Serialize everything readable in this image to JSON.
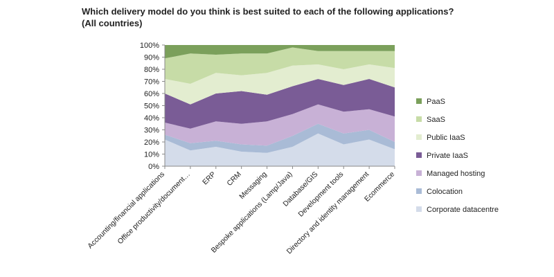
{
  "chart_data": {
    "type": "area",
    "stacked": true,
    "title": "Which delivery model do you think is best suited to each of the following applications? (All countries)",
    "categories": [
      "Accounting/financial applications",
      "Office productivity/document…",
      "ERP",
      "CRM",
      "Messaging",
      "Bespoke applications (Lamp/Java)",
      "Database/GIS",
      "Development tools",
      "Directory and identity management",
      "Ecommerce"
    ],
    "y_ticks": [
      "0%",
      "10%",
      "20%",
      "30%",
      "40%",
      "50%",
      "60%",
      "70%",
      "80%",
      "90%",
      "100%"
    ],
    "ylim": [
      0,
      100
    ],
    "legend_position": "right",
    "series": [
      {
        "name": "Corporate datacentre",
        "color": "#d4dcea",
        "values": [
          22,
          13,
          16,
          12,
          11,
          16,
          27,
          18,
          22,
          14
        ]
      },
      {
        "name": "Colocation",
        "color": "#a9bbd6",
        "values": [
          4,
          6,
          5,
          6,
          6,
          9,
          8,
          9,
          8,
          6
        ]
      },
      {
        "name": "Managed hosting",
        "color": "#c8b1d6",
        "values": [
          10,
          12,
          16,
          17,
          20,
          18,
          16,
          18,
          17,
          21
        ]
      },
      {
        "name": "Private IaaS",
        "color": "#7a5c96",
        "values": [
          24,
          20,
          23,
          27,
          22,
          23,
          21,
          22,
          25,
          24
        ]
      },
      {
        "name": "Public IaaS",
        "color": "#e3edd0",
        "values": [
          12,
          17,
          17,
          13,
          18,
          17,
          12,
          13,
          12,
          16
        ]
      },
      {
        "name": "SaaS",
        "color": "#c7dca7",
        "values": [
          17,
          25,
          15,
          18,
          16,
          15,
          11,
          15,
          11,
          14
        ]
      },
      {
        "name": "PaaS",
        "color": "#7ba05b",
        "values": [
          11,
          7,
          8,
          7,
          7,
          2,
          5,
          5,
          5,
          5
        ]
      }
    ]
  }
}
